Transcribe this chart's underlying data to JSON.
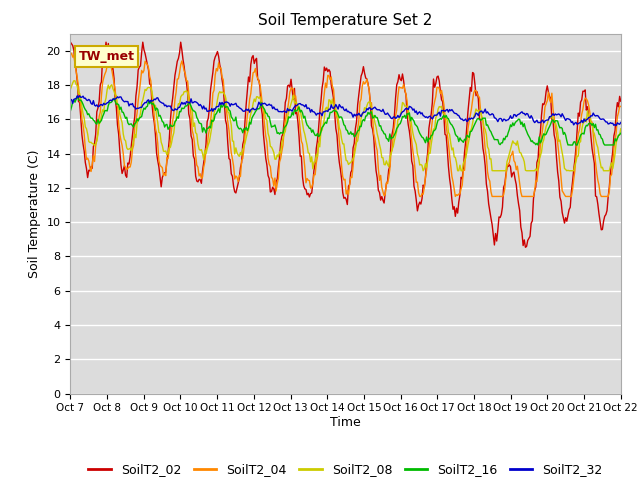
{
  "title": "Soil Temperature Set 2",
  "xlabel": "Time",
  "ylabel": "Soil Temperature (C)",
  "ylim": [
    0,
    21
  ],
  "yticks": [
    0,
    2,
    4,
    6,
    8,
    10,
    12,
    14,
    16,
    18,
    20
  ],
  "xtick_labels": [
    "Oct 7",
    "Oct 8",
    "Oct 9",
    "Oct 10",
    "Oct 11",
    "Oct 12",
    "Oct 13",
    "Oct 14",
    "Oct 15",
    "Oct 16",
    "Oct 17",
    "Oct 18",
    "Oct 19",
    "Oct 20",
    "Oct 21",
    "Oct 22"
  ],
  "series_names": [
    "SoilT2_02",
    "SoilT2_04",
    "SoilT2_08",
    "SoilT2_16",
    "SoilT2_32"
  ],
  "series_colors": [
    "#cc0000",
    "#ff8800",
    "#cccc00",
    "#00bb00",
    "#0000cc"
  ],
  "legend_label": "TW_met",
  "legend_box_facecolor": "#ffffcc",
  "legend_box_edgecolor": "#ccaa00",
  "plot_bg_color": "#dcdcdc",
  "fig_bg_color": "#ffffff",
  "grid_color": "#ffffff",
  "num_points": 480
}
